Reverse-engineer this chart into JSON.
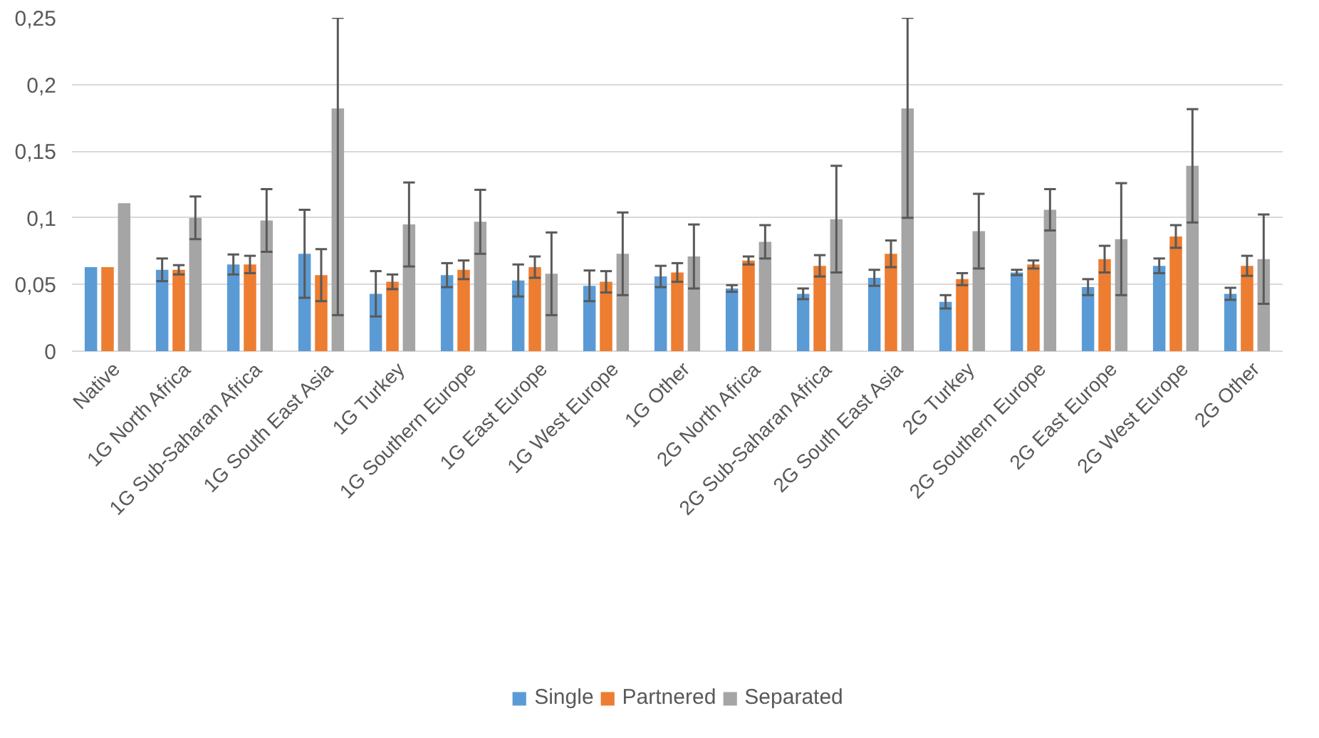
{
  "chart_data": {
    "type": "bar",
    "categories": [
      "Native",
      "1G North Africa",
      "1G Sub-Saharan Africa",
      "1G South East Asia",
      "1G Turkey",
      "1G Southern Europe",
      "1G East Europe",
      "1G West Europe",
      "1G Other",
      "2G North Africa",
      "2G Sub-Saharan Africa",
      "2G South East Asia",
      "2G Turkey",
      "2G Southern Europe",
      "2G East Europe",
      "2G West Europe",
      "2G Other"
    ],
    "series": [
      {
        "name": "Single",
        "color": "#5b9bd5",
        "values": [
          0.063,
          0.061,
          0.065,
          0.073,
          0.043,
          0.057,
          0.053,
          0.049,
          0.056,
          0.047,
          0.043,
          0.055,
          0.037,
          0.059,
          0.048,
          0.064,
          0.043
        ],
        "errors": [
          null,
          0.0085,
          0.0075,
          0.033,
          0.017,
          0.009,
          0.012,
          0.0115,
          0.008,
          0.0025,
          0.004,
          0.006,
          0.005,
          0.002,
          0.006,
          0.0055,
          0.0045
        ]
      },
      {
        "name": "Partnered",
        "color": "#ed7d31",
        "values": [
          0.063,
          0.061,
          0.065,
          0.057,
          0.052,
          0.061,
          0.063,
          0.052,
          0.059,
          0.068,
          0.064,
          0.073,
          0.054,
          0.065,
          0.069,
          0.086,
          0.064
        ],
        "errors": [
          null,
          0.0035,
          0.0065,
          0.0195,
          0.0055,
          0.007,
          0.008,
          0.008,
          0.007,
          0.003,
          0.008,
          0.01,
          0.0045,
          0.003,
          0.01,
          0.0085,
          0.0075
        ]
      },
      {
        "name": "Separated",
        "color": "#a5a5a5",
        "values": [
          0.111,
          0.1,
          0.098,
          0.182,
          0.095,
          0.097,
          0.058,
          0.073,
          0.071,
          0.082,
          0.099,
          0.182,
          0.09,
          0.106,
          0.084,
          0.139,
          0.069
        ],
        "errors": [
          null,
          0.016,
          0.0235,
          [
            0.027,
            0.25
          ],
          0.0315,
          0.024,
          0.031,
          0.031,
          0.024,
          0.0125,
          0.04,
          [
            0.1,
            0.25
          ],
          0.028,
          0.0155,
          0.042,
          0.0425,
          0.0335
        ]
      }
    ],
    "ylim": [
      0,
      0.25
    ],
    "yticks": [
      {
        "value": 0,
        "label": "0"
      },
      {
        "value": 0.05,
        "label": "0,05"
      },
      {
        "value": 0.1,
        "label": "0,1"
      },
      {
        "value": 0.15,
        "label": "0,15"
      },
      {
        "value": 0.2,
        "label": "0,2"
      },
      {
        "value": 0.25,
        "label": "0,25"
      }
    ],
    "grid": "y",
    "legend": "bottom"
  }
}
